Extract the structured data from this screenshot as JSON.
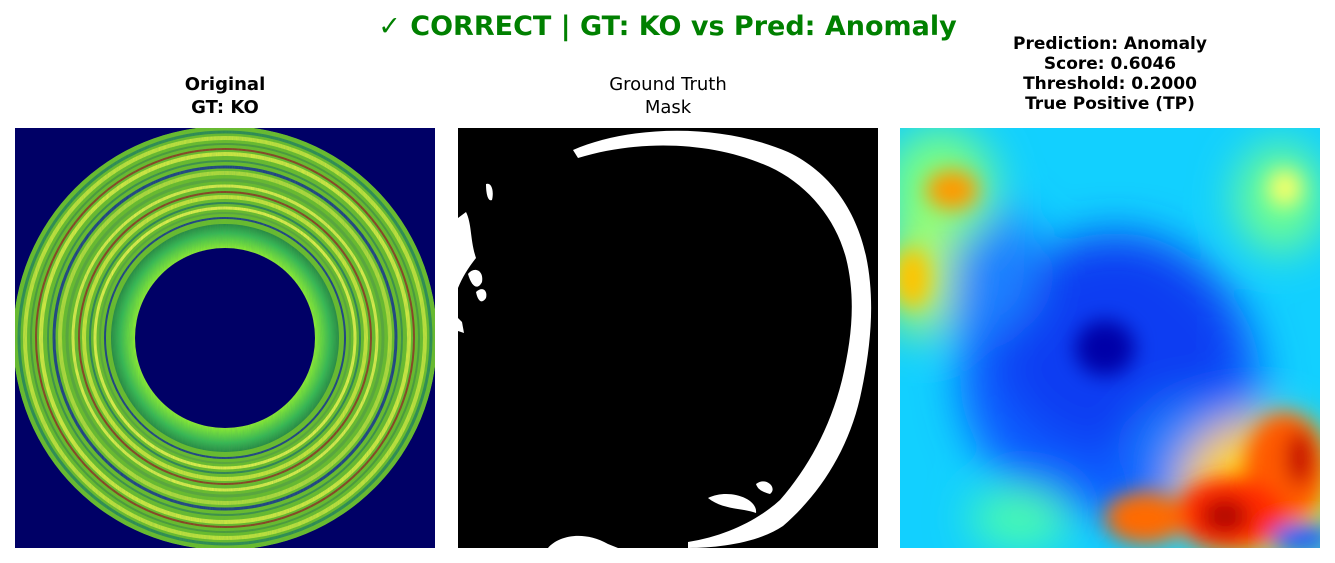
{
  "figure": {
    "title": "✓ CORRECT | GT: KO vs Pred: Anomaly",
    "title_color": "#008000"
  },
  "panels": [
    {
      "kind": "original",
      "title_lines": [
        "Original",
        "GT: KO"
      ]
    },
    {
      "kind": "ground-truth-mask",
      "title_lines": [
        "Ground Truth",
        "Mask"
      ]
    },
    {
      "kind": "anomaly-heatmap",
      "title_lines": [
        "Prediction: Anomaly",
        "Score: 0.6046",
        "Threshold: 0.2000",
        "True Positive (TP)"
      ]
    }
  ],
  "colors": {
    "original_background": "#000066",
    "mask_foreground": "#ffffff",
    "mask_background": "#000000",
    "heatmap_colormap": "jet"
  }
}
